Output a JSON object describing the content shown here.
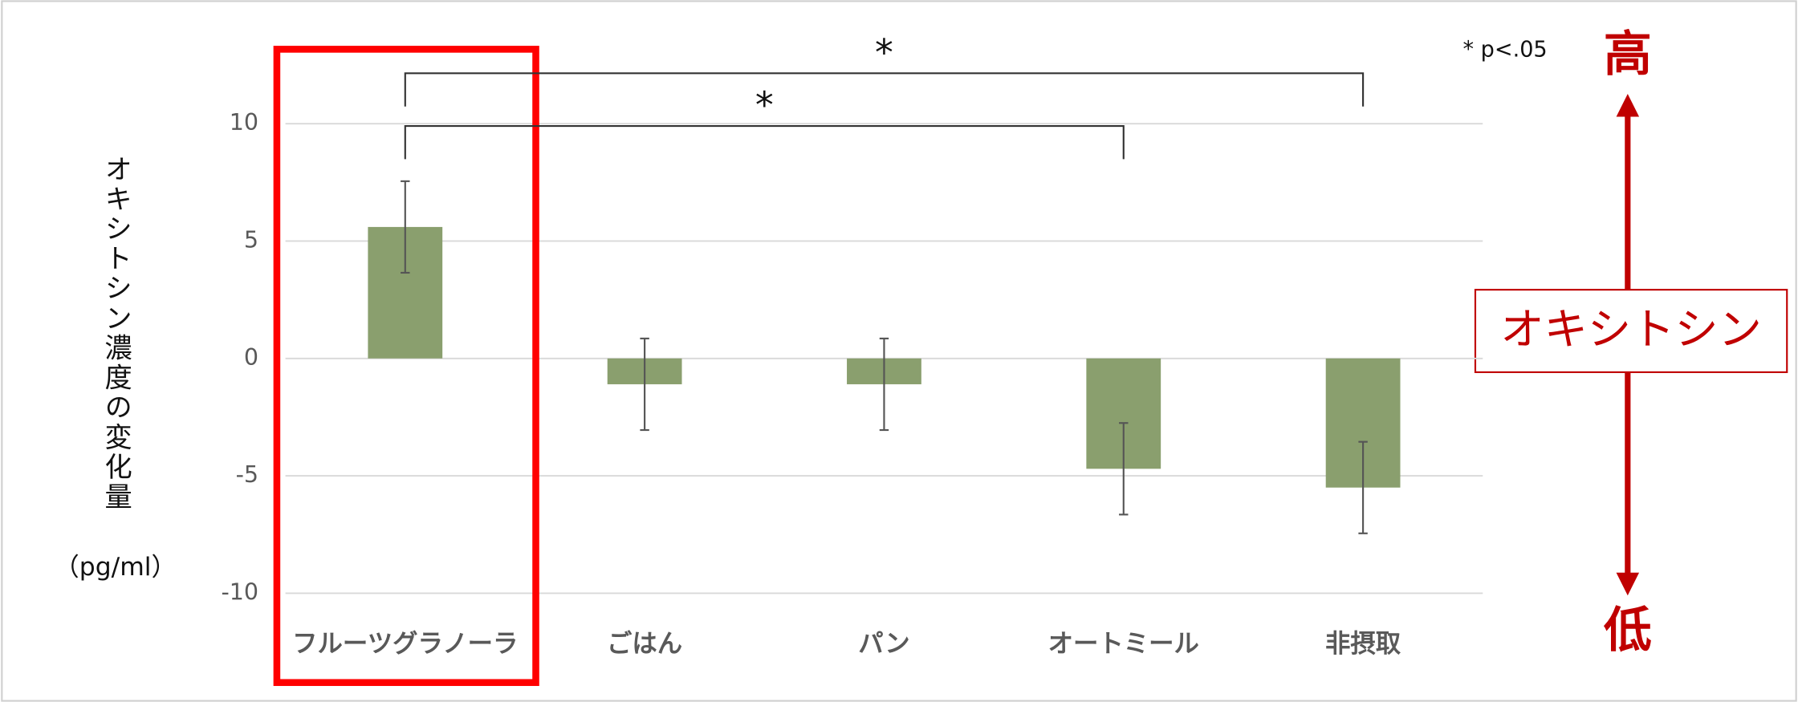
{
  "chart_data": {
    "type": "bar",
    "y_label": "オキシトシン濃度の変化量",
    "y_unit": "（pg/ml）",
    "categories": [
      "フルーツグラノーラ",
      "ごはん",
      "パン",
      "オートミール",
      "非摂取"
    ],
    "values": [
      5.6,
      -1.1,
      -1.1,
      -4.7,
      -5.5
    ],
    "errors": [
      1.95,
      1.95,
      1.95,
      1.95,
      1.95
    ],
    "color": "#8a9f6e",
    "ylim": [
      -10,
      10
    ],
    "yticks": [
      -10,
      -5,
      0,
      5,
      10
    ],
    "grid": true,
    "significance": [
      {
        "between": [
          "フルーツグラノーラ",
          "非摂取"
        ],
        "label": "*"
      },
      {
        "between": [
          "フルーツグラノーラ",
          "オートミール"
        ],
        "label": "*"
      }
    ],
    "significance_note": "* p<.05",
    "highlight": "フルーツグラノーラ",
    "scale_label": "オキシトシン",
    "scale_high": "高",
    "scale_low": "低"
  }
}
